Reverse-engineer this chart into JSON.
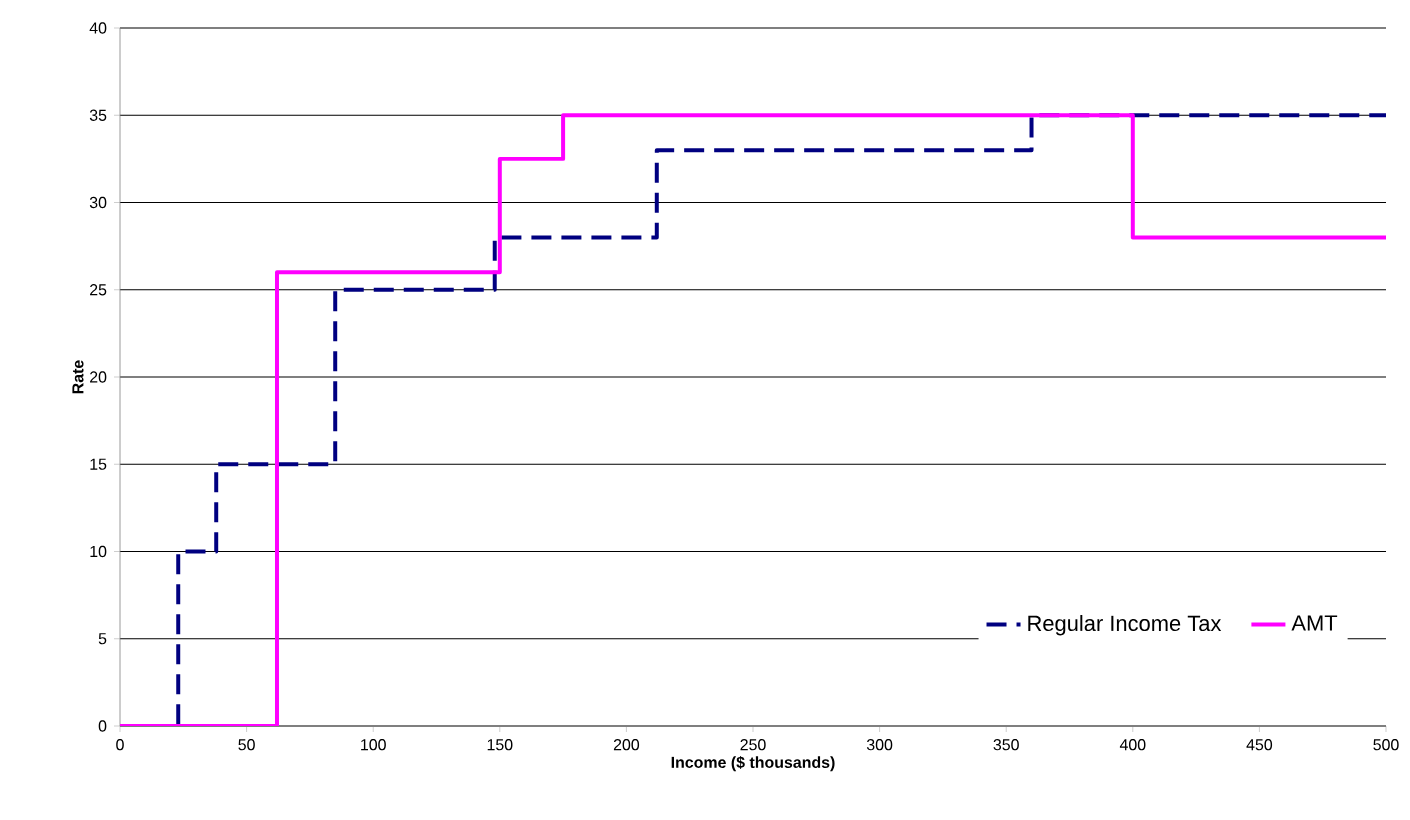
{
  "chart_data": {
    "type": "step",
    "xlabel": "Income ($ thousands)",
    "ylabel": "Rate",
    "series": [
      {
        "name": "Regular Income Tax",
        "color": "#000080",
        "line_style": "dashed",
        "x": [
          0,
          23,
          38,
          85,
          148,
          212,
          360,
          500
        ],
        "values": [
          0,
          10,
          15,
          25,
          28,
          33,
          35,
          35
        ]
      },
      {
        "name": "AMT",
        "color": "#ff00ff",
        "line_style": "solid",
        "x": [
          0,
          62,
          150,
          175,
          400,
          500
        ],
        "values": [
          0,
          26,
          32.5,
          35,
          28,
          28
        ]
      }
    ],
    "xlim": [
      0,
      500
    ],
    "xticks": [
      0,
      50,
      100,
      150,
      200,
      250,
      300,
      350,
      400,
      450,
      500
    ],
    "ylim": [
      0,
      40
    ],
    "yticks": [
      0,
      5,
      10,
      15,
      20,
      25,
      30,
      35,
      40
    ],
    "grid": "y",
    "legend": "bottom right",
    "marker": "none"
  }
}
